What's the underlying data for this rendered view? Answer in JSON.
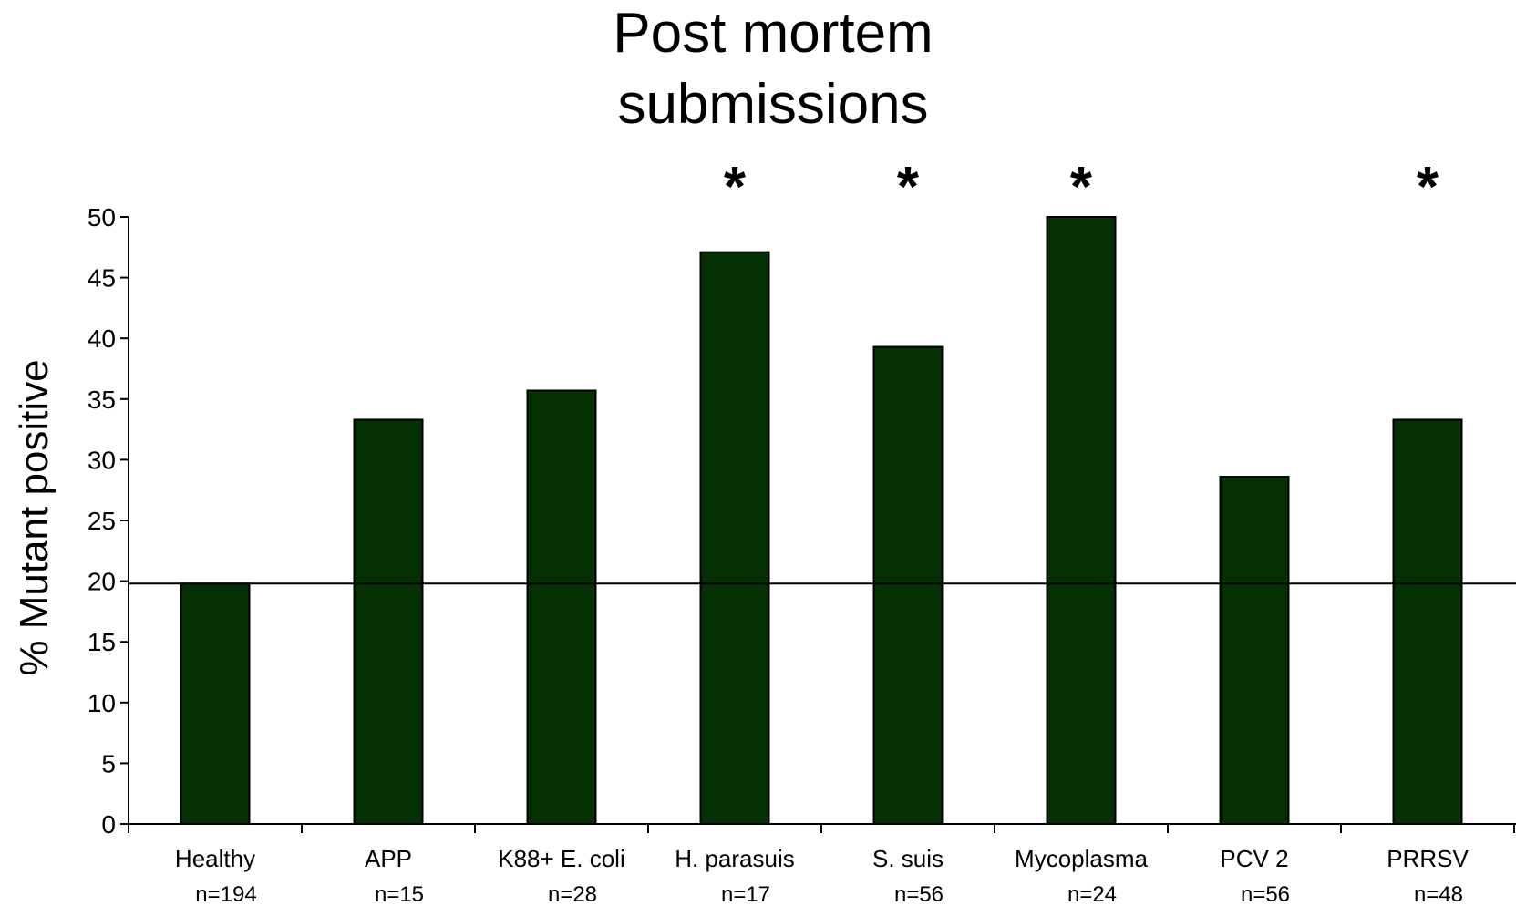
{
  "chart_data": {
    "type": "bar",
    "title": [
      "Post mortem",
      "submissions"
    ],
    "ylabel": "% Mutant positive",
    "xlabel": "",
    "ylim": [
      0,
      50
    ],
    "yticks": [
      0,
      5,
      10,
      15,
      20,
      25,
      30,
      35,
      40,
      45,
      50
    ],
    "categories": [
      "Healthy",
      "APP",
      "K88+ E. coli",
      "H. parasuis",
      "S. suis",
      "Mycoplasma",
      "PCV 2",
      "PRRSV"
    ],
    "sample_sizes": [
      "n=194",
      "n=15",
      "n=28",
      "n=17",
      "n=56",
      "n=24",
      "n=56",
      "n=48"
    ],
    "values": [
      19.8,
      33.3,
      35.7,
      47.1,
      39.3,
      50.0,
      28.6,
      33.3
    ],
    "significant": [
      false,
      false,
      false,
      true,
      true,
      true,
      false,
      true
    ],
    "significance_marker": "*",
    "reference_line": 19.8,
    "grid": false,
    "legend": "none",
    "colors": {
      "bar_fill": "#043004",
      "bar_stroke": "#000000",
      "axis": "#000000",
      "reference_line": "#000000"
    }
  }
}
